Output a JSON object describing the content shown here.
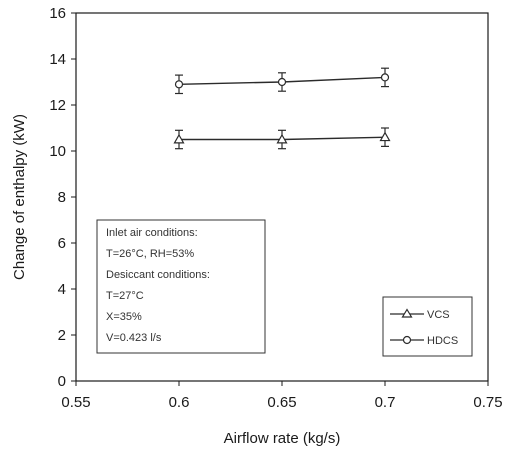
{
  "chart_data": {
    "type": "line",
    "xlabel": "Airflow rate (kg/s)",
    "ylabel": "Change of enthalpy (kW)",
    "xlim": [
      0.55,
      0.75
    ],
    "ylim": [
      0,
      16
    ],
    "x_ticks": [
      "0.55",
      "0.6",
      "0.65",
      "0.7",
      "0.75"
    ],
    "y_ticks": [
      "0",
      "2",
      "4",
      "6",
      "8",
      "10",
      "12",
      "14",
      "16"
    ],
    "grid": false,
    "legend_position": "bottom-right",
    "series": [
      {
        "name": "VCS",
        "marker": "triangle",
        "x": [
          0.6,
          0.65,
          0.7
        ],
        "y": [
          10.5,
          10.5,
          10.6
        ],
        "error": [
          0.4,
          0.4,
          0.4
        ],
        "color": "#2b2b2b"
      },
      {
        "name": "HDCS",
        "marker": "circle",
        "x": [
          0.6,
          0.65,
          0.7
        ],
        "y": [
          12.9,
          13.0,
          13.2
        ],
        "error": [
          0.4,
          0.4,
          0.4
        ],
        "color": "#2b2b2b"
      }
    ],
    "annotation": [
      "Inlet air conditions:",
      "T=26°C, RH=53%",
      "Desiccant conditions:",
      "T=27°C",
      "X=35%",
      "V=0.423 l/s"
    ]
  }
}
